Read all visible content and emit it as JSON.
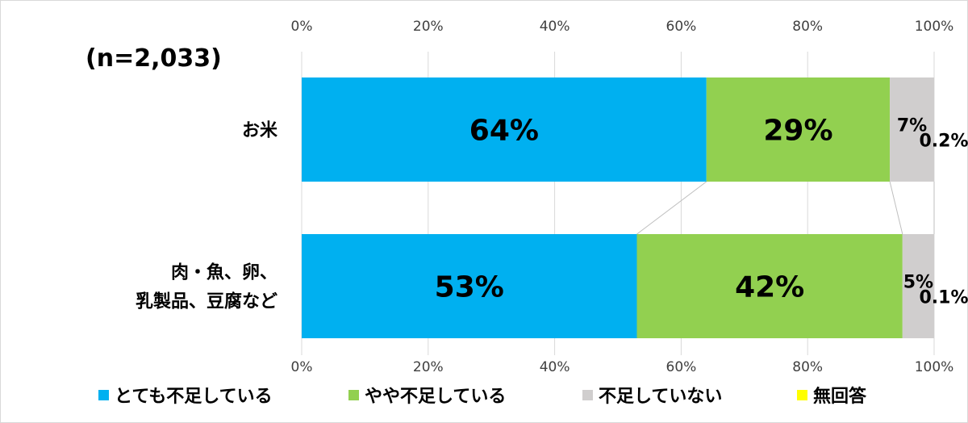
{
  "sample_size_label": "(n=2,033)",
  "colors": {
    "very_short": "#00b0f0",
    "somewhat_short": "#92d050",
    "not_short": "#d0cece",
    "no_answer": "#ffff00",
    "grid": "#d9d9d9",
    "connector": "#bfbfbf"
  },
  "chart_data": {
    "type": "bar",
    "orientation": "horizontal",
    "stacked": "percent",
    "xlim": [
      0,
      100
    ],
    "x_ticks": [
      "0%",
      "20%",
      "40%",
      "60%",
      "80%",
      "100%"
    ],
    "categories": [
      "お米",
      "肉・魚、卵、\n乳製品、豆腐など"
    ],
    "series": [
      {
        "name": "とても不足している",
        "values": [
          64,
          53
        ],
        "labels": [
          "64%",
          "53%"
        ]
      },
      {
        "name": "やや不足している",
        "values": [
          29,
          42
        ],
        "labels": [
          "29%",
          "42%"
        ]
      },
      {
        "name": "不足していない",
        "values": [
          7,
          5
        ],
        "labels": [
          "7%",
          "5%"
        ]
      },
      {
        "name": "無回答",
        "values": [
          0.2,
          0.1
        ],
        "labels": [
          "0.2%",
          "0.1%"
        ]
      }
    ],
    "legend_position": "bottom",
    "gridlines": true,
    "series_lines": true
  }
}
